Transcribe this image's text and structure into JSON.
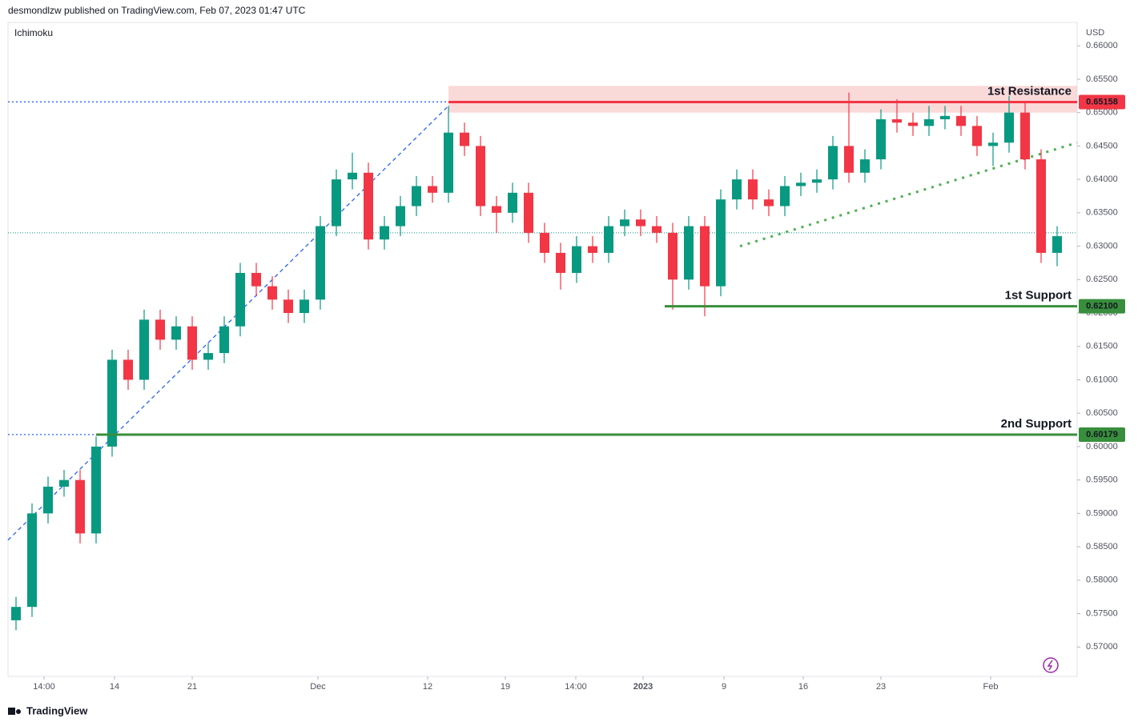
{
  "chart_data": {
    "type": "candlestick",
    "header": "desmondlzw published on TradingView.com, Feb 07, 2023 01:47 UTC",
    "indicator": "Ichimoku",
    "currency": "USD",
    "brand": "TradingView",
    "up_color": "#089981",
    "down_color": "#f23645",
    "xlim": [
      0,
      66.75
    ],
    "xticks": [
      {
        "value": 2.25,
        "label": "14:00"
      },
      {
        "value": 6.65,
        "label": "14"
      },
      {
        "value": 11.5,
        "label": "21"
      },
      {
        "value": 19.35,
        "label": "Dec"
      },
      {
        "value": 26.2,
        "label": "12"
      },
      {
        "value": 31.05,
        "label": "19"
      },
      {
        "value": 35.45,
        "label": "14:00"
      },
      {
        "value": 39.65,
        "label": "2023"
      },
      {
        "value": 44.7,
        "label": "9"
      },
      {
        "value": 49.65,
        "label": "16"
      },
      {
        "value": 54.5,
        "label": "23"
      },
      {
        "value": 61.35,
        "label": "Feb"
      }
    ],
    "ylim": [
      0.5656,
      0.6635
    ],
    "yticks": [
      {
        "value": 0.57,
        "label": "0.57000"
      },
      {
        "value": 0.575,
        "label": "0.57500"
      },
      {
        "value": 0.58,
        "label": "0.58000"
      },
      {
        "value": 0.585,
        "label": "0.58500"
      },
      {
        "value": 0.59,
        "label": "0.59000"
      },
      {
        "value": 0.595,
        "label": "0.59500"
      },
      {
        "value": 0.6,
        "label": "0.60000"
      },
      {
        "value": 0.605,
        "label": "0.60500"
      },
      {
        "value": 0.61,
        "label": "0.61000"
      },
      {
        "value": 0.615,
        "label": "0.61500"
      },
      {
        "value": 0.62,
        "label": "0.62000"
      },
      {
        "value": 0.625,
        "label": "0.62500"
      },
      {
        "value": 0.63,
        "label": "0.63000"
      },
      {
        "value": 0.635,
        "label": "0.63500"
      },
      {
        "value": 0.64,
        "label": "0.64000"
      },
      {
        "value": 0.645,
        "label": "0.64500"
      },
      {
        "value": 0.65,
        "label": "0.65000"
      },
      {
        "value": 0.655,
        "label": "0.65500"
      },
      {
        "value": 0.66,
        "label": "0.66000"
      }
    ],
    "grid": false,
    "candles": {
      "open": [
        0.574,
        0.576,
        0.59,
        0.594,
        0.595,
        0.587,
        0.6,
        0.613,
        0.61,
        0.619,
        0.616,
        0.618,
        0.613,
        0.614,
        0.618,
        0.626,
        0.624,
        0.622,
        0.62,
        0.622,
        0.633,
        0.64,
        0.641,
        0.631,
        0.633,
        0.636,
        0.639,
        0.638,
        0.647,
        0.645,
        0.636,
        0.635,
        0.638,
        0.632,
        0.629,
        0.626,
        0.63,
        0.629,
        0.633,
        0.634,
        0.633,
        0.632,
        0.625,
        0.633,
        0.624,
        0.637,
        0.64,
        0.637,
        0.636,
        0.639,
        0.6395,
        0.64,
        0.645,
        0.641,
        0.643,
        0.649,
        0.6485,
        0.648,
        0.649,
        0.6495,
        0.648,
        0.645,
        0.6455,
        0.65,
        0.643,
        0.629
      ],
      "high": [
        0.5775,
        0.5915,
        0.5955,
        0.5965,
        0.5965,
        0.6015,
        0.6145,
        0.6145,
        0.6205,
        0.6205,
        0.6195,
        0.6195,
        0.6155,
        0.6195,
        0.6275,
        0.6275,
        0.6255,
        0.6235,
        0.6235,
        0.6345,
        0.6415,
        0.644,
        0.6425,
        0.6345,
        0.6375,
        0.6405,
        0.6405,
        0.651,
        0.6485,
        0.6465,
        0.6375,
        0.6395,
        0.6395,
        0.6335,
        0.6305,
        0.6315,
        0.6315,
        0.6345,
        0.6355,
        0.6355,
        0.6345,
        0.6335,
        0.6345,
        0.6345,
        0.6385,
        0.6415,
        0.6415,
        0.6385,
        0.6405,
        0.641,
        0.6415,
        0.6465,
        0.653,
        0.6445,
        0.6505,
        0.652,
        0.65,
        0.651,
        0.651,
        0.651,
        0.6495,
        0.647,
        0.6525,
        0.6515,
        0.6445,
        0.633
      ],
      "low": [
        0.5725,
        0.5745,
        0.5885,
        0.5925,
        0.5855,
        0.5855,
        0.5985,
        0.6085,
        0.6085,
        0.6145,
        0.6145,
        0.6115,
        0.6115,
        0.6125,
        0.6165,
        0.6225,
        0.6205,
        0.6185,
        0.6185,
        0.6205,
        0.6315,
        0.6385,
        0.6295,
        0.6295,
        0.6315,
        0.6345,
        0.6365,
        0.6365,
        0.6435,
        0.6345,
        0.632,
        0.6335,
        0.6305,
        0.6275,
        0.6235,
        0.6245,
        0.6275,
        0.6275,
        0.6315,
        0.6315,
        0.6305,
        0.6205,
        0.6235,
        0.6195,
        0.6225,
        0.6355,
        0.6355,
        0.6345,
        0.6345,
        0.6375,
        0.638,
        0.6385,
        0.6395,
        0.6395,
        0.6415,
        0.647,
        0.6465,
        0.6465,
        0.6475,
        0.6465,
        0.6435,
        0.642,
        0.644,
        0.6415,
        0.6275,
        0.627
      ],
      "close": [
        0.576,
        0.59,
        0.594,
        0.595,
        0.587,
        0.6,
        0.613,
        0.61,
        0.619,
        0.616,
        0.618,
        0.613,
        0.614,
        0.618,
        0.626,
        0.624,
        0.622,
        0.62,
        0.622,
        0.633,
        0.64,
        0.641,
        0.631,
        0.633,
        0.636,
        0.639,
        0.638,
        0.647,
        0.645,
        0.636,
        0.635,
        0.638,
        0.632,
        0.629,
        0.626,
        0.63,
        0.629,
        0.633,
        0.634,
        0.633,
        0.632,
        0.625,
        0.633,
        0.624,
        0.637,
        0.64,
        0.637,
        0.636,
        0.639,
        0.6395,
        0.64,
        0.645,
        0.641,
        0.643,
        0.649,
        0.6485,
        0.648,
        0.649,
        0.6495,
        0.648,
        0.645,
        0.6455,
        0.65,
        0.643,
        0.629,
        0.6315
      ]
    },
    "last_price": 0.632,
    "resistance_zone": {
      "x": [
        27.5,
        66.75
      ],
      "y": [
        0.65,
        0.654
      ],
      "color": "#f8c9c9"
    },
    "levels": [
      {
        "name": "1st Resistance",
        "value": 0.65158,
        "label": "0.65158",
        "start": 27.5,
        "color": "#f23645"
      },
      {
        "name": "1st Support",
        "value": 0.621,
        "label": "0.62100",
        "start": 41,
        "color": "#388e3c"
      },
      {
        "name": "2nd Support",
        "value": 0.60179,
        "label": "0.60179",
        "start": 5.5,
        "color": "#388e3c"
      }
    ],
    "trendlines": [
      {
        "x": [
          0,
          27.5
        ],
        "y": [
          0.586,
          0.651
        ],
        "color": "#2962ff",
        "dash": "5,4"
      },
      {
        "x": [
          0,
          27.5
        ],
        "y": [
          0.6516,
          0.6516
        ],
        "color": "#2962ff",
        "dash": "2,3"
      },
      {
        "x": [
          0,
          5.5
        ],
        "y": [
          0.6018,
          0.6018
        ],
        "color": "#2962ff",
        "dash": "2,3"
      },
      {
        "x": [
          45.7,
          66.75
        ],
        "y": [
          0.63,
          0.6455
        ],
        "color": "#4caf50",
        "dash": "3,7"
      }
    ]
  }
}
